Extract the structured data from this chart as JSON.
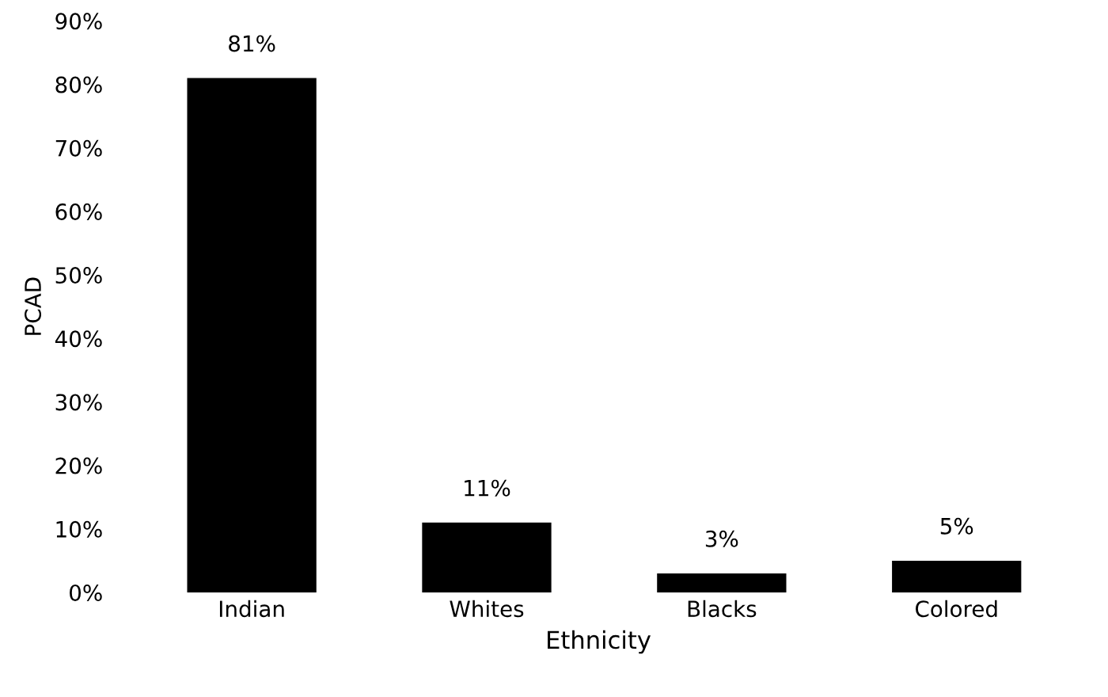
{
  "chart_data": {
    "type": "bar",
    "xlabel": "Ethnicity",
    "ylabel": "PCAD",
    "categories": [
      "Indian",
      "Whites",
      "Blacks",
      "Colored"
    ],
    "values": [
      81,
      11,
      3,
      5
    ],
    "color": "#000000",
    "value_labels": [
      "81%",
      "11%",
      "3%",
      "5%"
    ],
    "ylim": [
      0,
      90
    ],
    "yticks": [
      {
        "value": 0,
        "label": "0%"
      },
      {
        "value": 10,
        "label": "10%"
      },
      {
        "value": 20,
        "label": "20%"
      },
      {
        "value": 30,
        "label": "30%"
      },
      {
        "value": 40,
        "label": "40%"
      },
      {
        "value": 50,
        "label": "50%"
      },
      {
        "value": 60,
        "label": "60%"
      },
      {
        "value": 70,
        "label": "70%"
      },
      {
        "value": 80,
        "label": "80%"
      },
      {
        "value": 90,
        "label": "90%"
      }
    ],
    "grid": false,
    "legend": false
  }
}
